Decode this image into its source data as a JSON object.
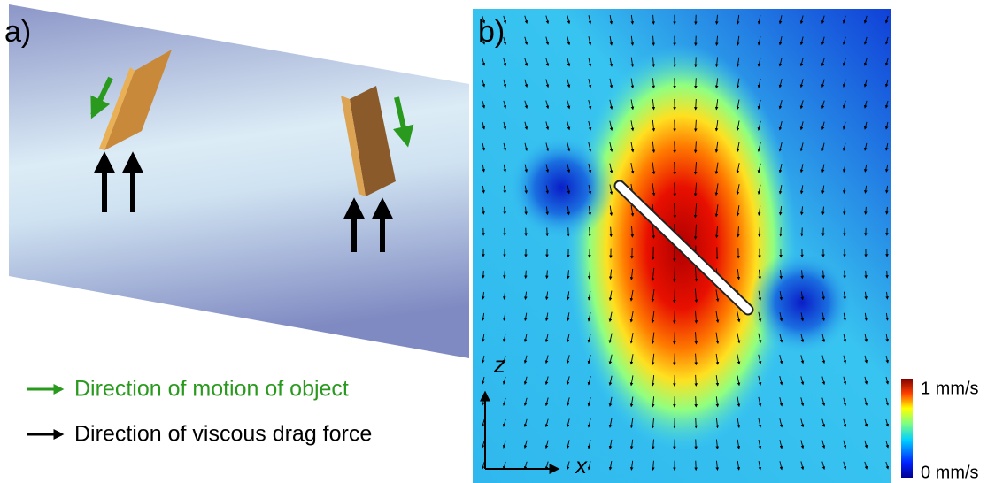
{
  "panel_a": {
    "label": "a)",
    "legend": [
      {
        "text": "Direction of motion of object"
      },
      {
        "text": "Direction of viscous drag force"
      }
    ]
  },
  "panel_b": {
    "label": "b)",
    "axis_z": "z",
    "axis_x": "x",
    "colorbar": {
      "max_label": "1 mm/s",
      "min_label": "0 mm/s"
    }
  }
}
